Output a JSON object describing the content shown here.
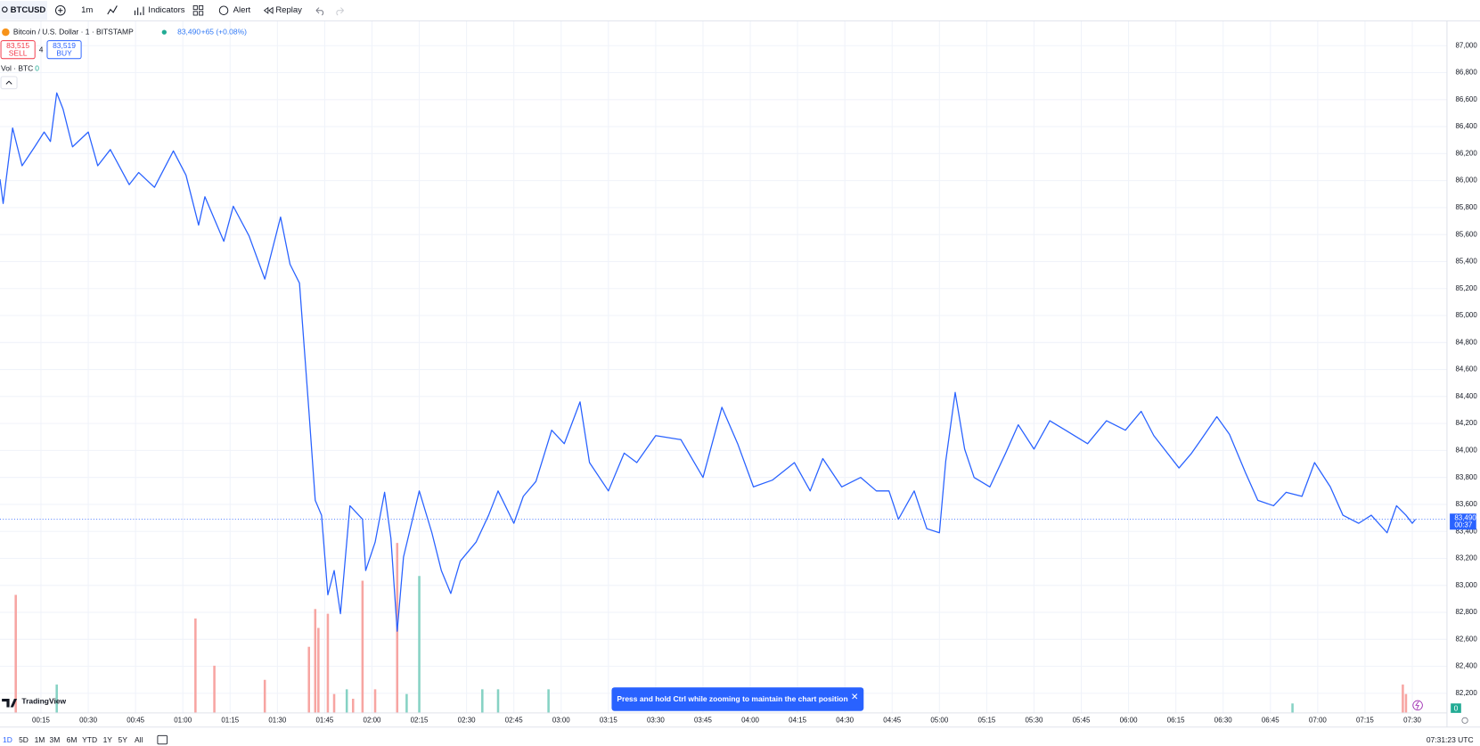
{
  "toolbar": {
    "symbol": "BTCUSD",
    "interval": "1m",
    "indicators": "Indicators",
    "alert": "Alert",
    "replay": "Replay"
  },
  "legend": {
    "title": "Bitcoin / U.S. Dollar · 1 · BITSTAMP",
    "change": "+65 (+0.08%)",
    "sell_price": "83,515",
    "sell": "SELL",
    "spread": "4",
    "buy_price": "83,519",
    "buy": "BUY",
    "volume_label": "Vol · BTC",
    "volume_value": "0"
  },
  "chart_data": {
    "type": "line",
    "color": "#2962ff",
    "grid": true,
    "x": [
      "00:02",
      "00:03",
      "00:06",
      "00:09",
      "00:13",
      "00:16",
      "00:18",
      "00:20",
      "00:22",
      "00:25",
      "00:30",
      "00:33",
      "00:37",
      "00:43",
      "00:46",
      "00:51",
      "00:57",
      "01:01",
      "01:05",
      "01:07",
      "01:13",
      "01:16",
      "01:21",
      "01:26",
      "01:31",
      "01:34",
      "01:37",
      "01:40",
      "01:42",
      "01:44",
      "01:46",
      "01:48",
      "01:50",
      "01:53",
      "01:57",
      "01:58",
      "02:01",
      "02:04",
      "02:06",
      "02:08",
      "02:10",
      "02:15",
      "02:19",
      "02:22",
      "02:25",
      "02:28",
      "02:33",
      "02:37",
      "02:40",
      "02:45",
      "02:48",
      "02:52",
      "02:57",
      "03:01",
      "03:06",
      "03:09",
      "03:15",
      "03:20",
      "03:24",
      "03:30",
      "03:38",
      "03:45",
      "03:51",
      "03:56",
      "04:01",
      "04:07",
      "04:14",
      "04:19",
      "04:23",
      "04:29",
      "04:35",
      "04:40",
      "04:44",
      "04:47",
      "04:52",
      "04:56",
      "05:00",
      "05:02",
      "05:05",
      "05:08",
      "05:11",
      "05:16",
      "05:21",
      "05:25",
      "05:30",
      "05:35",
      "05:40",
      "05:47",
      "05:53",
      "05:59",
      "06:04",
      "06:08",
      "06:16",
      "06:20",
      "06:23",
      "06:28",
      "06:32",
      "06:37",
      "06:41",
      "06:46",
      "06:50",
      "06:55",
      "06:59",
      "07:04",
      "07:08",
      "07:13",
      "07:17",
      "07:22",
      "07:25",
      "07:28",
      "07:30",
      "07:31"
    ],
    "values": [
      86010,
      85830,
      86390,
      86110,
      86250,
      86360,
      86290,
      86650,
      86530,
      86250,
      86360,
      86110,
      86230,
      85970,
      86060,
      85950,
      86220,
      86040,
      85670,
      85880,
      85550,
      85810,
      85590,
      85270,
      85730,
      85380,
      85240,
      84290,
      83630,
      83520,
      82930,
      83110,
      82790,
      83590,
      83490,
      83110,
      83320,
      83690,
      83350,
      82660,
      83210,
      83700,
      83390,
      83110,
      82940,
      83180,
      83320,
      83520,
      83700,
      83460,
      83660,
      83770,
      84150,
      84050,
      84360,
      83910,
      83700,
      83980,
      83910,
      84110,
      84080,
      83800,
      84320,
      84050,
      83730,
      83780,
      83910,
      83700,
      83940,
      83730,
      83800,
      83700,
      83700,
      83490,
      83700,
      83420,
      83390,
      83920,
      84430,
      84010,
      83800,
      83730,
      83980,
      84190,
      84010,
      84220,
      84150,
      84050,
      84220,
      84150,
      84290,
      84110,
      83870,
      83980,
      84080,
      84250,
      84120,
      83840,
      83630,
      83590,
      83690,
      83660,
      83910,
      83730,
      83520,
      83460,
      83520,
      83390,
      83590,
      83520,
      83460,
      83490
    ],
    "xlim": [
      "00:02",
      "07:41"
    ],
    "ylim": [
      81950,
      87170
    ],
    "xticks": [
      "00:15",
      "00:30",
      "00:45",
      "01:00",
      "01:15",
      "01:30",
      "01:45",
      "02:00",
      "02:15",
      "02:30",
      "02:45",
      "03:00",
      "03:15",
      "03:30",
      "03:45",
      "04:00",
      "04:15",
      "04:30",
      "04:45",
      "05:00",
      "05:15",
      "05:30",
      "05:45",
      "06:00",
      "06:15",
      "06:30",
      "06:45",
      "07:00",
      "07:15",
      "07:30"
    ],
    "yticks": [
      {
        "value": 82200,
        "label": "82,200"
      },
      {
        "value": 82400,
        "label": "82,400"
      },
      {
        "value": 82600,
        "label": "82,600"
      },
      {
        "value": 82800,
        "label": "82,800"
      },
      {
        "value": 83000,
        "label": "83,000"
      },
      {
        "value": 83200,
        "label": "83,200"
      },
      {
        "value": 83400,
        "label": "83,400"
      },
      {
        "value": 83600,
        "label": "83,600"
      },
      {
        "value": 83800,
        "label": "83,800"
      },
      {
        "value": 84000,
        "label": "84,000"
      },
      {
        "value": 84200,
        "label": "84,200"
      },
      {
        "value": 84400,
        "label": "84,400"
      },
      {
        "value": 84600,
        "label": "84,600"
      },
      {
        "value": 84800,
        "label": "84,800"
      },
      {
        "value": 85000,
        "label": "85,000"
      },
      {
        "value": 85200,
        "label": "85,200"
      },
      {
        "value": 85400,
        "label": "85,400"
      },
      {
        "value": 85600,
        "label": "85,600"
      },
      {
        "value": 85800,
        "label": "85,800"
      },
      {
        "value": 86000,
        "label": "86,000"
      },
      {
        "value": 86200,
        "label": "86,200"
      },
      {
        "value": 86400,
        "label": "86,400"
      },
      {
        "value": 86600,
        "label": "86,600"
      },
      {
        "value": 86800,
        "label": "86,800"
      },
      {
        "value": 87000,
        "label": "87,000"
      }
    ],
    "last_price": {
      "value": 83490,
      "label": "83,490"
    },
    "countdown": "00:37",
    "volume": {
      "x": [
        "00:07",
        "00:20",
        "01:04",
        "01:10",
        "01:26",
        "01:40",
        "01:42",
        "01:43",
        "01:46",
        "01:48",
        "01:52",
        "01:54",
        "01:57",
        "02:01",
        "02:08",
        "02:11",
        "02:15",
        "02:35",
        "02:40",
        "02:56",
        "06:52",
        "07:27",
        "07:28"
      ],
      "values": [
        12.5,
        3,
        10,
        5,
        3.5,
        7,
        11,
        9,
        10.5,
        2,
        2.5,
        1.5,
        14,
        2.5,
        18,
        2,
        14.5,
        2.5,
        2.5,
        2.5,
        1,
        3,
        2
      ],
      "colors": [
        "#f7a5a2",
        "#86d2c4",
        "#f7a5a2",
        "#f7a5a2",
        "#f7a5a2",
        "#f7a5a2",
        "#f7a5a2",
        "#f7a5a2",
        "#f7a5a2",
        "#f7a5a2",
        "#86d2c4",
        "#f7a5a2",
        "#f7a5a2",
        "#f7a5a2",
        "#f7a5a2",
        "#86d2c4",
        "#86d2c4",
        "#86d2c4",
        "#86d2c4",
        "#86d2c4",
        "#86d2c4",
        "#f7a5a2",
        "#f7a5a2"
      ]
    }
  },
  "toast": "Press and hold Ctrl while zooming to maintain the chart position",
  "logo": "TradingView",
  "ranges": [
    "1D",
    "5D",
    "1M",
    "3M",
    "6M",
    "YTD",
    "1Y",
    "5Y",
    "All"
  ],
  "clock": "07:31:23 UTC"
}
